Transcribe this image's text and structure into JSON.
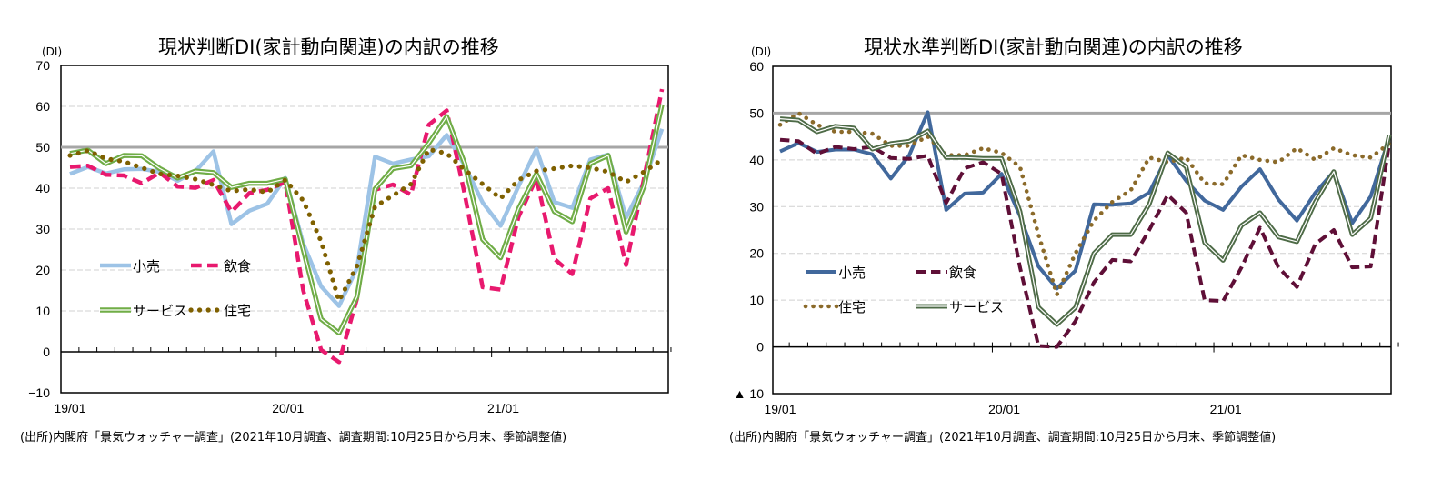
{
  "charts": [
    {
      "title": "現状判断DI(家計動向関連)の内訳の推移",
      "unit": "(DI)",
      "source": "(出所)内閣府「景気ウォッチャー調査」(2021年10月調査、調査期間:10月25日から月末、季節調整値)"
    },
    {
      "title": "現状水準判断DI(家計動向関連)の内訳の推移",
      "unit": "(DI)",
      "source": "(出所)内閣府「景気ウォッチャー調査」(2021年10月調査、調査期間:10月25日から月末、季節調整値)"
    }
  ],
  "chart_data": [
    {
      "type": "line",
      "title": "現状判断DI(家計動向関連)の内訳の推移",
      "ylabel": "(DI)",
      "xlabel": "",
      "ylim": [
        -10,
        70
      ],
      "yticks": [
        -10,
        0,
        10,
        20,
        30,
        40,
        50,
        60,
        70
      ],
      "ytick_labels": [
        "−10",
        "0",
        "10",
        "20",
        "30",
        "40",
        "50",
        "60",
        "70"
      ],
      "xtick_labels": [
        "19/01",
        "20/01",
        "21/01"
      ],
      "x_start": "2019-01",
      "x_end": "2021-10",
      "months": 34,
      "reference_line": 50,
      "grid": true,
      "legend": "inside-lower-left",
      "series": [
        {
          "name": "小売",
          "style": "solid",
          "color": "#9DC3E6",
          "values": [
            43.5,
            45.2,
            43.6,
            44.6,
            44.7,
            44.0,
            41.8,
            44.2,
            49.0,
            31.2,
            34.5,
            36.2,
            42.5,
            26.5,
            16.0,
            11.2,
            20.5,
            47.7,
            46.0,
            47.0,
            47.8,
            53.0,
            45.5,
            36.5,
            30.8,
            40.5,
            49.6,
            36.6,
            35.2,
            47.0,
            48.2,
            32.8,
            41.5,
            54.5
          ]
        },
        {
          "name": "飲食",
          "style": "dashed",
          "color": "#E8196E",
          "values": [
            45.2,
            45.5,
            43.3,
            43.1,
            41.2,
            43.8,
            40.4,
            40.1,
            42.0,
            34.2,
            38.8,
            39.6,
            41.5,
            15.0,
            0.5,
            -2.5,
            13.0,
            39.6,
            40.9,
            38.4,
            55.5,
            59.0,
            38.5,
            15.8,
            15.2,
            33.0,
            42.5,
            22.7,
            19.0,
            37.5,
            40.0,
            21.2,
            42.5,
            64.2
          ]
        },
        {
          "name": "サービス",
          "style": "double",
          "color": "#70AD47",
          "values": [
            48.5,
            49.3,
            46.0,
            48.0,
            47.9,
            44.8,
            42.5,
            44.2,
            43.8,
            40.2,
            41.2,
            41.2,
            42.2,
            25.0,
            8.0,
            4.6,
            13.5,
            39.8,
            44.8,
            45.5,
            51.0,
            57.5,
            46.0,
            27.5,
            23.0,
            35.0,
            43.5,
            34.3,
            31.8,
            46.0,
            48.0,
            29.3,
            40.5,
            60.5
          ]
        },
        {
          "name": "住宅",
          "style": "dotted",
          "color": "#7F6000",
          "values": [
            48.0,
            49.2,
            47.2,
            46.5,
            45.0,
            43.5,
            43.0,
            42.2,
            40.8,
            39.3,
            39.7,
            39.0,
            42.0,
            37.0,
            27.0,
            12.5,
            21.0,
            35.5,
            38.2,
            41.0,
            49.5,
            48.5,
            44.5,
            41.0,
            37.5,
            42.0,
            44.2,
            44.8,
            45.5,
            45.0,
            44.0,
            41.5,
            44.0,
            47.0
          ]
        }
      ]
    },
    {
      "type": "line",
      "title": "現状水準判断DI(家計動向関連)の内訳の推移",
      "ylabel": "(DI)",
      "xlabel": "",
      "ylim": [
        -10,
        60
      ],
      "yticks": [
        -10,
        0,
        10,
        20,
        30,
        40,
        50,
        60
      ],
      "ytick_labels": [
        "▲ 10",
        "0",
        "10",
        "20",
        "30",
        "40",
        "50",
        "60"
      ],
      "xtick_labels": [
        "19/01",
        "20/01",
        "21/01"
      ],
      "x_start": "2019-01",
      "x_end": "2021-10",
      "months": 34,
      "reference_line": 50,
      "grid": true,
      "legend": "inside-lower-left",
      "series": [
        {
          "name": "小売",
          "style": "solid",
          "color": "#41689C",
          "values": [
            41.8,
            43.6,
            41.7,
            42.2,
            42.2,
            41.2,
            36.0,
            41.0,
            50.2,
            29.3,
            32.8,
            33.0,
            37.0,
            28.0,
            17.2,
            12.5,
            16.3,
            30.5,
            30.4,
            30.7,
            33.0,
            41.0,
            35.5,
            31.3,
            29.3,
            34.3,
            38.0,
            31.5,
            27.0,
            33.0,
            37.5,
            26.5,
            32.2,
            44.8
          ]
        },
        {
          "name": "飲食",
          "style": "dashed",
          "color": "#5F0F37",
          "values": [
            44.3,
            44.0,
            41.3,
            42.8,
            42.3,
            42.8,
            40.4,
            40.2,
            40.9,
            30.8,
            38.2,
            39.5,
            37.0,
            17.0,
            0.2,
            0.0,
            5.5,
            13.8,
            18.6,
            18.3,
            25.0,
            32.5,
            28.7,
            10.0,
            9.8,
            17.0,
            25.5,
            17.0,
            12.8,
            22.0,
            25.0,
            17.0,
            17.2,
            43.5
          ]
        },
        {
          "name": "住宅",
          "style": "dotted",
          "color": "#8B6A2A",
          "values": [
            47.5,
            50.0,
            47.5,
            46.0,
            46.0,
            45.6,
            43.0,
            43.0,
            45.0,
            41.0,
            41.0,
            42.5,
            41.5,
            38.5,
            24.0,
            11.2,
            20.0,
            27.0,
            31.0,
            33.5,
            40.5,
            39.5,
            40.5,
            35.0,
            34.8,
            41.0,
            40.0,
            39.5,
            42.5,
            40.0,
            42.5,
            41.0,
            40.5,
            43.5
          ]
        },
        {
          "name": "サービス",
          "style": "double",
          "color": "#4E6B47",
          "values": [
            48.8,
            48.5,
            46.0,
            47.2,
            46.8,
            42.3,
            43.5,
            44.0,
            46.2,
            40.5,
            40.5,
            40.3,
            40.3,
            29.0,
            8.5,
            4.8,
            8.4,
            20.0,
            24.0,
            24.0,
            30.5,
            41.5,
            38.5,
            22.3,
            18.5,
            26.0,
            28.7,
            23.5,
            22.5,
            31.0,
            37.5,
            24.0,
            27.5,
            45.3
          ]
        }
      ]
    }
  ]
}
